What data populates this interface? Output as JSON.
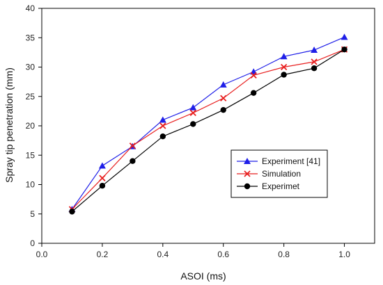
{
  "chart_data": {
    "type": "line",
    "xlabel": "ASOI (ms)",
    "ylabel": "Spray tip penetration (mm)",
    "xlim": [
      0.0,
      1.1
    ],
    "ylim": [
      0,
      40
    ],
    "xticks": [
      0.0,
      0.2,
      0.4,
      0.6,
      0.8,
      1.0
    ],
    "xtick_labels": [
      "0.0",
      "0.2",
      "0.4",
      "0.6",
      "0.8",
      "1.0"
    ],
    "yticks": [
      0,
      5,
      10,
      15,
      20,
      25,
      30,
      35,
      40
    ],
    "ytick_labels": [
      "0",
      "5",
      "10",
      "15",
      "20",
      "25",
      "30",
      "35",
      "40"
    ],
    "grid": false,
    "legend_position": "right",
    "x": [
      0.1,
      0.2,
      0.3,
      0.4,
      0.5,
      0.6,
      0.7,
      0.8,
      0.9,
      1.0
    ],
    "series": [
      {
        "name": "Experiment [41]",
        "color": "#1f1fe8",
        "marker": "triangle",
        "values": [
          5.8,
          13.2,
          16.5,
          21.0,
          23.1,
          27.0,
          29.2,
          31.8,
          32.9,
          35.1
        ]
      },
      {
        "name": "Simulation",
        "color": "#e81f1f",
        "marker": "x",
        "values": [
          5.8,
          11.1,
          16.6,
          20.0,
          22.2,
          24.7,
          28.6,
          30.0,
          30.9,
          33.0
        ]
      },
      {
        "name": "Experimet",
        "color": "#000000",
        "marker": "circle",
        "values": [
          5.4,
          9.8,
          14.0,
          18.2,
          20.3,
          22.7,
          25.6,
          28.7,
          29.8,
          33.0
        ]
      }
    ]
  }
}
